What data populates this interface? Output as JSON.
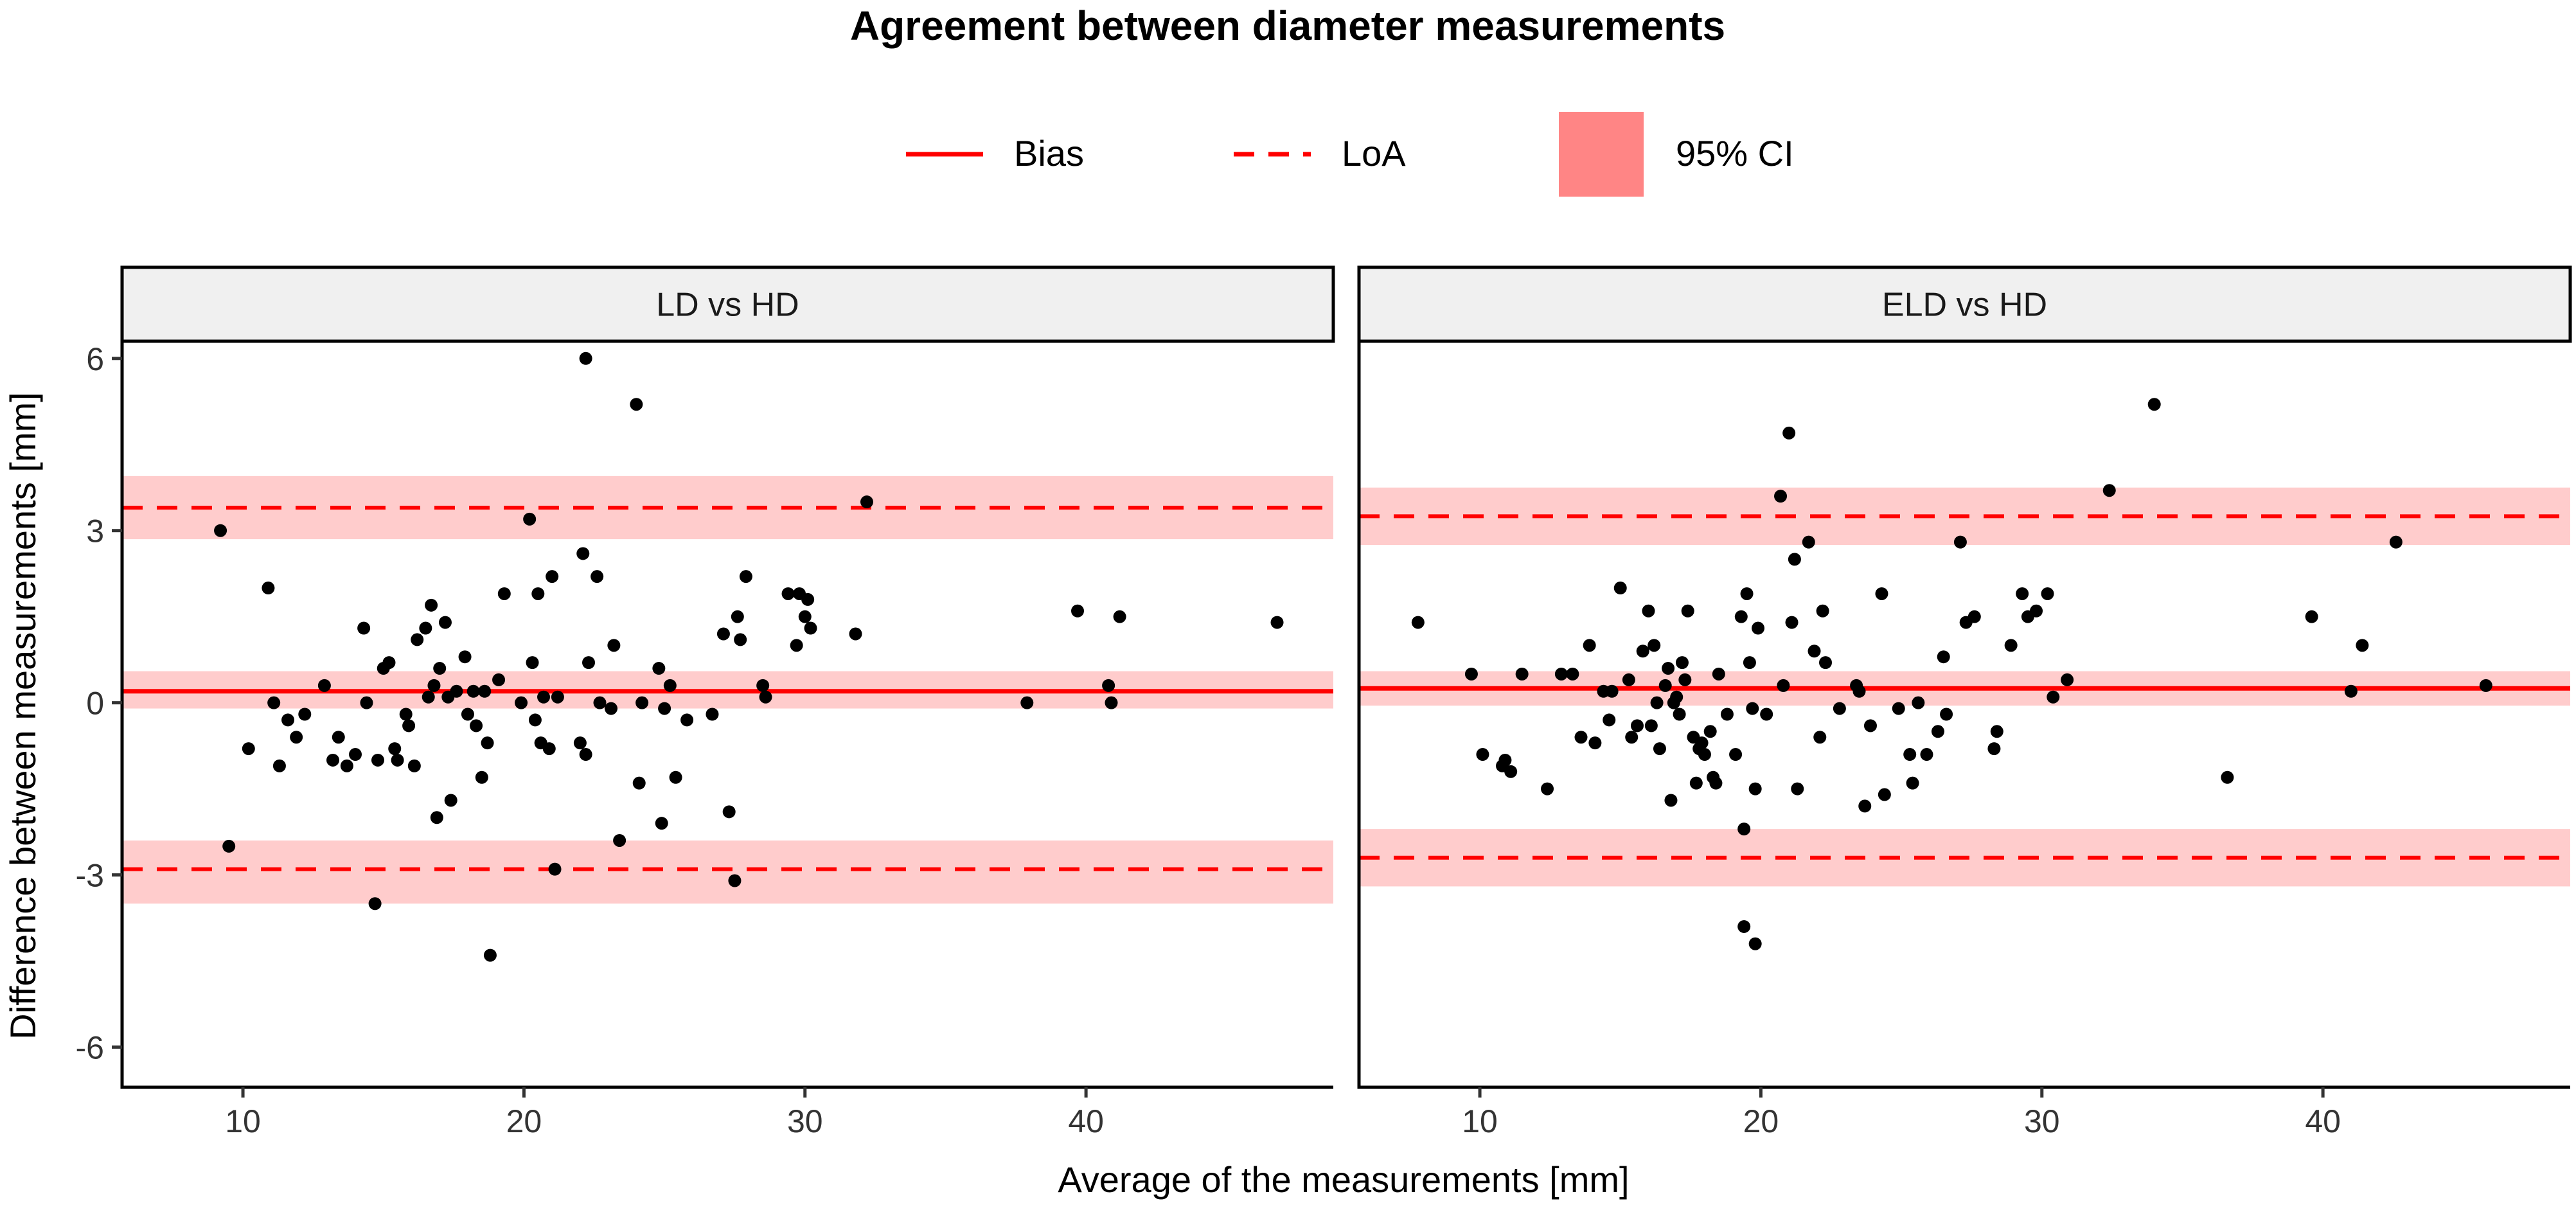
{
  "chart_data": {
    "type": "scatter",
    "title": "Agreement between diameter measurements",
    "xlabel": "Average of the measurements [mm]",
    "ylabel": "Difference between measurements [mm]",
    "xlim": [
      5.7,
      48.8
    ],
    "ylim": [
      -6.7,
      6.3
    ],
    "x_ticks": [
      10,
      20,
      30,
      40
    ],
    "y_ticks": [
      6,
      3,
      0,
      -3,
      -6
    ],
    "x_tick_labels": [
      "10",
      "20",
      "30",
      "40"
    ],
    "y_tick_labels": [
      "6",
      "3",
      "0",
      "-3",
      "-6"
    ],
    "legend": {
      "position": "top",
      "entries": [
        {
          "label": "Bias",
          "style": "solid line"
        },
        {
          "label": "LoA",
          "style": "dashed line"
        },
        {
          "label": "95% CI",
          "style": "filled box"
        }
      ]
    },
    "colors": {
      "line": "#ff0000",
      "band": "#ffcccc",
      "legend_box": "#ff8585",
      "point": "#000000",
      "strip": "#f0f0f0"
    },
    "panels": [
      {
        "name": "LD vs HD",
        "bias": 0.2,
        "bias_ci": [
          -0.1,
          0.55
        ],
        "loa_upper": 3.4,
        "loa_upper_ci": [
          2.85,
          3.95
        ],
        "loa_lower": -2.9,
        "loa_lower_ci": [
          -3.5,
          -2.4
        ],
        "points": [
          [
            9.2,
            3.0
          ],
          [
            9.5,
            -2.5
          ],
          [
            10.2,
            -0.8
          ],
          [
            10.9,
            2.0
          ],
          [
            11.1,
            0.0
          ],
          [
            11.3,
            -1.1
          ],
          [
            11.6,
            -0.3
          ],
          [
            11.9,
            -0.6
          ],
          [
            12.2,
            -0.2
          ],
          [
            12.9,
            0.3
          ],
          [
            13.2,
            -1.0
          ],
          [
            13.4,
            -0.6
          ],
          [
            13.7,
            -1.1
          ],
          [
            14.0,
            -0.9
          ],
          [
            14.3,
            1.3
          ],
          [
            14.4,
            0.0
          ],
          [
            14.7,
            -3.5
          ],
          [
            14.8,
            -1.0
          ],
          [
            15.0,
            0.6
          ],
          [
            15.2,
            0.7
          ],
          [
            15.4,
            -0.8
          ],
          [
            15.5,
            -1.0
          ],
          [
            15.8,
            -0.2
          ],
          [
            15.9,
            -0.4
          ],
          [
            16.1,
            -1.1
          ],
          [
            16.2,
            1.1
          ],
          [
            16.5,
            1.3
          ],
          [
            16.6,
            0.1
          ],
          [
            16.7,
            1.7
          ],
          [
            16.8,
            0.3
          ],
          [
            16.9,
            -2.0
          ],
          [
            17.0,
            0.6
          ],
          [
            17.2,
            1.4
          ],
          [
            17.3,
            0.1
          ],
          [
            17.4,
            -1.7
          ],
          [
            17.6,
            0.2
          ],
          [
            17.9,
            0.8
          ],
          [
            18.0,
            -0.2
          ],
          [
            18.2,
            0.2
          ],
          [
            18.3,
            -0.4
          ],
          [
            18.5,
            -1.3
          ],
          [
            18.6,
            0.2
          ],
          [
            18.7,
            -0.7
          ],
          [
            18.8,
            -4.4
          ],
          [
            19.1,
            0.4
          ],
          [
            19.3,
            1.9
          ],
          [
            19.9,
            0.0
          ],
          [
            20.2,
            3.2
          ],
          [
            20.3,
            0.7
          ],
          [
            20.4,
            -0.3
          ],
          [
            20.5,
            1.9
          ],
          [
            20.6,
            -0.7
          ],
          [
            20.7,
            0.1
          ],
          [
            20.9,
            -0.8
          ],
          [
            21.0,
            2.2
          ],
          [
            21.1,
            -2.9
          ],
          [
            21.2,
            0.1
          ],
          [
            22.0,
            -0.7
          ],
          [
            22.1,
            2.6
          ],
          [
            22.2,
            6.0
          ],
          [
            22.2,
            -0.9
          ],
          [
            22.3,
            0.7
          ],
          [
            22.6,
            2.2
          ],
          [
            22.7,
            0.0
          ],
          [
            23.1,
            -0.1
          ],
          [
            23.2,
            1.0
          ],
          [
            23.4,
            -2.4
          ],
          [
            24.0,
            5.2
          ],
          [
            24.1,
            -1.4
          ],
          [
            24.2,
            0.0
          ],
          [
            24.8,
            0.6
          ],
          [
            24.9,
            -2.1
          ],
          [
            25.0,
            -0.1
          ],
          [
            25.2,
            0.3
          ],
          [
            25.4,
            -1.3
          ],
          [
            25.8,
            -0.3
          ],
          [
            26.7,
            -0.2
          ],
          [
            27.1,
            1.2
          ],
          [
            27.3,
            -1.9
          ],
          [
            27.5,
            -3.1
          ],
          [
            27.6,
            1.5
          ],
          [
            27.7,
            1.1
          ],
          [
            27.9,
            2.2
          ],
          [
            28.5,
            0.3
          ],
          [
            28.6,
            0.1
          ],
          [
            29.4,
            1.9
          ],
          [
            29.7,
            1.0
          ],
          [
            29.8,
            1.9
          ],
          [
            30.0,
            1.5
          ],
          [
            30.1,
            1.8
          ],
          [
            30.2,
            1.3
          ],
          [
            31.8,
            1.2
          ],
          [
            32.2,
            3.5
          ],
          [
            37.9,
            0.0
          ],
          [
            39.7,
            1.6
          ],
          [
            40.8,
            0.3
          ],
          [
            40.9,
            0.0
          ],
          [
            41.2,
            1.5
          ],
          [
            46.8,
            1.4
          ]
        ]
      },
      {
        "name": "ELD vs HD",
        "bias": 0.25,
        "bias_ci": [
          -0.05,
          0.55
        ],
        "loa_upper": 3.25,
        "loa_upper_ci": [
          2.75,
          3.75
        ],
        "loa_lower": -2.7,
        "loa_lower_ci": [
          -3.2,
          -2.2
        ],
        "points": [
          [
            7.8,
            1.4
          ],
          [
            9.7,
            0.5
          ],
          [
            10.1,
            -0.9
          ],
          [
            10.8,
            -1.1
          ],
          [
            10.9,
            -1.0
          ],
          [
            11.1,
            -1.2
          ],
          [
            11.5,
            0.5
          ],
          [
            12.4,
            -1.5
          ],
          [
            12.9,
            0.5
          ],
          [
            13.3,
            0.5
          ],
          [
            13.6,
            -0.6
          ],
          [
            13.9,
            1.0
          ],
          [
            14.1,
            -0.7
          ],
          [
            14.4,
            0.2
          ],
          [
            14.6,
            -0.3
          ],
          [
            14.7,
            0.2
          ],
          [
            15.0,
            2.0
          ],
          [
            15.3,
            0.4
          ],
          [
            15.4,
            -0.6
          ],
          [
            15.6,
            -0.4
          ],
          [
            15.8,
            0.9
          ],
          [
            16.0,
            1.6
          ],
          [
            16.1,
            -0.4
          ],
          [
            16.2,
            1.0
          ],
          [
            16.3,
            0.0
          ],
          [
            16.4,
            -0.8
          ],
          [
            16.6,
            0.3
          ],
          [
            16.7,
            0.6
          ],
          [
            16.8,
            -1.7
          ],
          [
            16.9,
            0.0
          ],
          [
            17.0,
            0.1
          ],
          [
            17.1,
            -0.2
          ],
          [
            17.2,
            0.7
          ],
          [
            17.3,
            0.4
          ],
          [
            17.4,
            1.6
          ],
          [
            17.6,
            -0.6
          ],
          [
            17.7,
            -1.4
          ],
          [
            17.8,
            -0.8
          ],
          [
            17.9,
            -0.7
          ],
          [
            18.0,
            -0.9
          ],
          [
            18.2,
            -0.5
          ],
          [
            18.3,
            -1.3
          ],
          [
            18.4,
            -1.4
          ],
          [
            18.5,
            0.5
          ],
          [
            18.8,
            -0.2
          ],
          [
            19.1,
            -0.9
          ],
          [
            19.3,
            1.5
          ],
          [
            19.4,
            -2.2
          ],
          [
            19.4,
            -3.9
          ],
          [
            19.5,
            1.9
          ],
          [
            19.6,
            0.7
          ],
          [
            19.7,
            -0.1
          ],
          [
            19.8,
            -1.5
          ],
          [
            19.9,
            1.3
          ],
          [
            19.8,
            -4.2
          ],
          [
            20.2,
            -0.2
          ],
          [
            20.7,
            3.6
          ],
          [
            20.8,
            0.3
          ],
          [
            21.0,
            4.7
          ],
          [
            21.1,
            1.4
          ],
          [
            21.2,
            2.5
          ],
          [
            21.3,
            -1.5
          ],
          [
            21.7,
            2.8
          ],
          [
            21.9,
            0.9
          ],
          [
            22.1,
            -0.6
          ],
          [
            22.2,
            1.6
          ],
          [
            22.3,
            0.7
          ],
          [
            22.8,
            -0.1
          ],
          [
            23.4,
            0.3
          ],
          [
            23.5,
            0.2
          ],
          [
            23.7,
            -1.8
          ],
          [
            23.9,
            -0.4
          ],
          [
            24.3,
            1.9
          ],
          [
            24.4,
            -1.6
          ],
          [
            24.9,
            -0.1
          ],
          [
            25.3,
            -0.9
          ],
          [
            25.4,
            -1.4
          ],
          [
            25.6,
            0.0
          ],
          [
            25.9,
            -0.9
          ],
          [
            26.3,
            -0.5
          ],
          [
            26.5,
            0.8
          ],
          [
            26.6,
            -0.2
          ],
          [
            27.1,
            2.8
          ],
          [
            27.3,
            1.4
          ],
          [
            27.6,
            1.5
          ],
          [
            28.3,
            -0.8
          ],
          [
            28.4,
            -0.5
          ],
          [
            28.9,
            1.0
          ],
          [
            29.3,
            1.9
          ],
          [
            29.5,
            1.5
          ],
          [
            29.8,
            1.6
          ],
          [
            30.2,
            1.9
          ],
          [
            30.4,
            0.1
          ],
          [
            30.9,
            0.4
          ],
          [
            32.4,
            3.7
          ],
          [
            34.0,
            5.2
          ],
          [
            36.6,
            -1.3
          ],
          [
            39.6,
            1.5
          ],
          [
            41.0,
            0.2
          ],
          [
            41.4,
            1.0
          ],
          [
            42.6,
            2.8
          ],
          [
            45.8,
            0.3
          ]
        ]
      }
    ]
  }
}
